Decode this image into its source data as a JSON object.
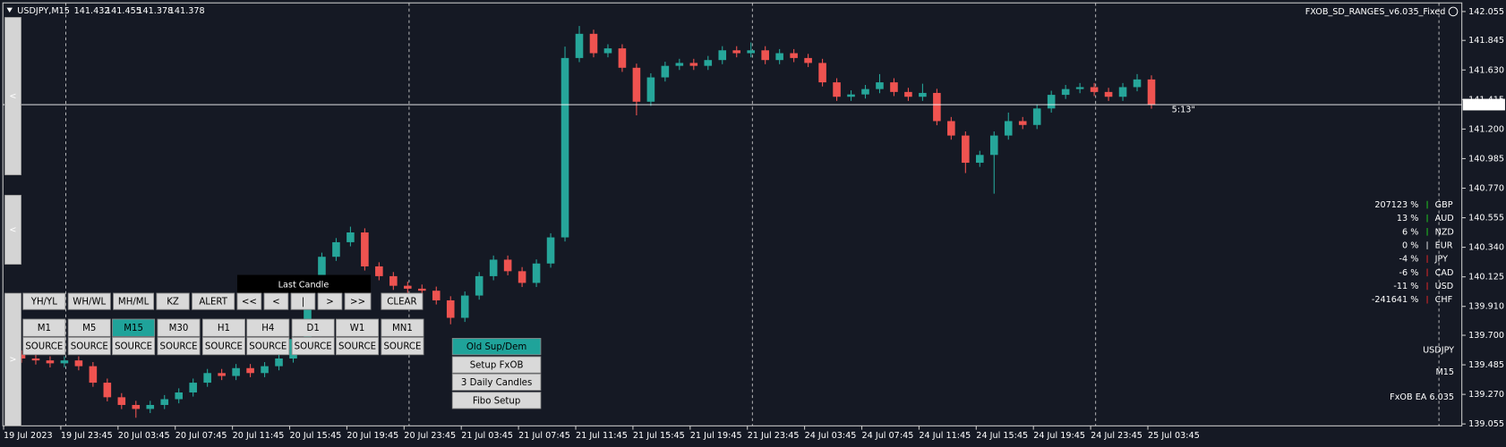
{
  "chart_data": {
    "type": "candlestick",
    "symbol": "USDJPY,M15",
    "header_prices": [
      141.432,
      141.455,
      141.378,
      141.378
    ],
    "indicator": "FXOB_SD_RANGES_v6.035_Fixed",
    "timer": "5:13\"",
    "up_color": "#26a69a",
    "down_color": "#ef5350",
    "x": [
      0,
      1,
      2,
      3,
      4,
      5,
      6,
      7,
      8,
      9,
      10,
      11,
      12,
      13,
      14,
      15,
      16,
      17,
      18,
      19,
      20,
      21,
      22,
      23,
      24,
      25,
      26,
      27,
      28,
      29,
      30,
      31,
      32,
      33,
      34,
      35,
      36,
      37,
      38,
      39,
      40,
      41,
      42,
      43,
      44,
      45,
      46,
      47,
      48,
      49,
      50,
      51,
      52,
      53,
      54,
      55,
      56,
      57,
      58,
      59,
      60,
      61,
      62,
      63,
      64,
      65,
      66,
      67,
      68,
      69,
      70,
      71,
      72,
      73,
      74,
      75,
      76,
      77,
      78,
      79
    ],
    "open": [
      139.56,
      139.531,
      139.517,
      139.496,
      139.517,
      139.475,
      139.355,
      139.249,
      139.193,
      139.164,
      139.193,
      139.235,
      139.284,
      139.355,
      139.425,
      139.404,
      139.461,
      139.425,
      139.475,
      139.531,
      139.672,
      139.954,
      140.271,
      140.377,
      140.448,
      140.201,
      140.13,
      140.06,
      140.039,
      140.024,
      139.954,
      139.827,
      139.989,
      140.13,
      140.25,
      140.166,
      140.081,
      140.222,
      140.412,
      141.717,
      141.893,
      141.752,
      141.787,
      141.646,
      141.399,
      141.576,
      141.66,
      141.681,
      141.66,
      141.702,
      141.773,
      141.752,
      141.773,
      141.702,
      141.752,
      141.717,
      141.681,
      141.54,
      141.435,
      141.452,
      141.491,
      141.54,
      141.47,
      141.435,
      141.463,
      141.258,
      141.153,
      140.955,
      141.012,
      141.153,
      141.258,
      141.23,
      141.35,
      141.449,
      141.491,
      141.505,
      141.47,
      141.435,
      141.505,
      141.561
    ],
    "high": [
      139.59,
      139.561,
      139.547,
      139.547,
      139.547,
      139.505,
      139.385,
      139.279,
      139.223,
      139.223,
      139.265,
      139.314,
      139.385,
      139.455,
      139.455,
      139.491,
      139.491,
      139.505,
      139.561,
      139.702,
      139.984,
      140.301,
      140.407,
      140.49,
      140.478,
      140.231,
      140.16,
      140.09,
      140.069,
      140.054,
      139.984,
      140.019,
      140.16,
      140.28,
      140.28,
      140.196,
      140.252,
      140.442,
      141.8,
      141.95,
      141.923,
      141.817,
      141.817,
      141.676,
      141.606,
      141.69,
      141.711,
      141.711,
      141.732,
      141.803,
      141.803,
      141.83,
      141.803,
      141.782,
      141.782,
      141.747,
      141.711,
      141.57,
      141.482,
      141.521,
      141.6,
      141.57,
      141.5,
      141.53,
      141.493,
      141.288,
      141.183,
      141.042,
      141.183,
      141.32,
      141.288,
      141.38,
      141.479,
      141.521,
      141.535,
      141.535,
      141.5,
      141.535,
      141.6,
      141.591
    ],
    "low": [
      139.5,
      139.487,
      139.466,
      139.466,
      139.445,
      139.325,
      139.219,
      139.163,
      139.1,
      139.134,
      139.163,
      139.205,
      139.254,
      139.325,
      139.374,
      139.374,
      139.395,
      139.395,
      139.445,
      139.501,
      139.642,
      139.924,
      140.241,
      140.347,
      140.171,
      140.1,
      140.03,
      140.009,
      139.994,
      139.924,
      139.78,
      139.797,
      139.959,
      140.1,
      140.136,
      140.051,
      140.051,
      140.192,
      140.382,
      141.687,
      141.722,
      141.722,
      141.616,
      141.3,
      141.369,
      141.546,
      141.63,
      141.63,
      141.63,
      141.672,
      141.722,
      141.722,
      141.672,
      141.672,
      141.687,
      141.651,
      141.51,
      141.405,
      141.405,
      141.422,
      141.461,
      141.44,
      141.405,
      141.405,
      141.228,
      141.123,
      140.88,
      140.925,
      140.73,
      141.123,
      141.2,
      141.2,
      141.32,
      141.419,
      141.461,
      141.44,
      141.405,
      141.405,
      141.475,
      141.348
    ],
    "close": [
      139.531,
      139.517,
      139.496,
      139.517,
      139.475,
      139.355,
      139.249,
      139.193,
      139.164,
      139.193,
      139.235,
      139.284,
      139.355,
      139.425,
      139.404,
      139.461,
      139.425,
      139.475,
      139.531,
      139.672,
      139.954,
      140.271,
      140.377,
      140.448,
      140.201,
      140.13,
      140.06,
      140.039,
      140.024,
      139.954,
      139.827,
      139.989,
      140.13,
      140.25,
      140.166,
      140.081,
      140.222,
      140.412,
      141.717,
      141.893,
      141.752,
      141.787,
      141.646,
      141.399,
      141.576,
      141.66,
      141.681,
      141.66,
      141.702,
      141.773,
      141.752,
      141.773,
      141.702,
      141.752,
      141.717,
      141.681,
      141.54,
      141.435,
      141.452,
      141.491,
      141.54,
      141.47,
      141.435,
      141.463,
      141.258,
      141.153,
      140.955,
      141.012,
      141.153,
      141.258,
      141.23,
      141.35,
      141.449,
      141.491,
      141.505,
      141.47,
      141.435,
      141.505,
      141.561,
      141.378
    ],
    "xlim": [
      -1.3,
      100.7
    ],
    "ylim": [
      139.041,
      142.118
    ],
    "xticks": [
      {
        "value": -1.25,
        "label": "19 Jul 2023"
      },
      {
        "value": 2.75,
        "label": "19 Jul 23:45"
      },
      {
        "value": 6.75,
        "label": "20 Jul 03:45"
      },
      {
        "value": 10.75,
        "label": "20 Jul 07:45"
      },
      {
        "value": 14.75,
        "label": "20 Jul 11:45"
      },
      {
        "value": 18.75,
        "label": "20 Jul 15:45"
      },
      {
        "value": 22.75,
        "label": "20 Jul 19:45"
      },
      {
        "value": 26.75,
        "label": "20 Jul 23:45"
      },
      {
        "value": 30.75,
        "label": "21 Jul 03:45"
      },
      {
        "value": 34.75,
        "label": "21 Jul 07:45"
      },
      {
        "value": 38.75,
        "label": "21 Jul 11:45"
      },
      {
        "value": 42.75,
        "label": "21 Jul 15:45"
      },
      {
        "value": 46.75,
        "label": "21 Jul 19:45"
      },
      {
        "value": 50.75,
        "label": "21 Jul 23:45"
      },
      {
        "value": 54.75,
        "label": "24 Jul 03:45"
      },
      {
        "value": 58.75,
        "label": "24 Jul 07:45"
      },
      {
        "value": 62.75,
        "label": "24 Jul 11:45"
      },
      {
        "value": 66.75,
        "label": "24 Jul 15:45"
      },
      {
        "value": 70.75,
        "label": "24 Jul 19:45"
      },
      {
        "value": 74.75,
        "label": "24 Jul 23:45"
      },
      {
        "value": 78.75,
        "label": "25 Jul 03:45"
      }
    ],
    "yticks": [
      142.055,
      141.845,
      {
        "value": 141.63,
        "label": "141.630"
      },
      141.415,
      {
        "value": 141.2,
        "label": "141.200"
      },
      140.985,
      {
        "value": 140.77,
        "label": "140.770"
      },
      140.555,
      {
        "value": 140.34,
        "label": "140.340"
      },
      140.125,
      {
        "value": 139.91,
        "label": "139.910"
      },
      {
        "value": 139.7,
        "label": "139.700"
      },
      139.485,
      {
        "value": 139.27,
        "label": "139.270"
      },
      139.055
    ],
    "separators": [
      3.1,
      27.1,
      51.1,
      75.1,
      99.1
    ],
    "current_price": 141.378
  },
  "strength": {
    "currencies": [
      "GBP",
      "AUD",
      "NZD",
      "EUR",
      "JPY",
      "CAD",
      "USD",
      "CHF"
    ],
    "values": [
      207123,
      13,
      6,
      0,
      -4,
      -6,
      -11,
      -241641
    ],
    "value_labels": [
      "207123 %",
      "13 %",
      "6 %",
      "0 %",
      "-4 %",
      "-6 %",
      "-11 %",
      "-241641 %"
    ],
    "name_colors": [
      "#ffffff",
      "#ffffff",
      "#ffffff",
      "#ffffff",
      "#00d8e8",
      "#ffffff",
      "#00d8e8",
      "#ffffff"
    ]
  },
  "panel": {
    "last_candle": "Last Candle",
    "row1": [
      "YH/YL",
      "WH/WL",
      "MH/ML",
      "KZ",
      "ALERT",
      "<<",
      "<",
      "|",
      ">",
      ">>",
      "CLEAR"
    ],
    "timeframes": [
      "M1",
      "M5",
      "M15",
      "M30",
      "H1",
      "H4",
      "D1",
      "W1",
      "MN1"
    ],
    "active_timeframe": 2,
    "sources": [
      "SOURCE",
      "SOURCE",
      "SOURCE",
      "SOURCE",
      "SOURCE",
      "SOURCE",
      "SOURCE",
      "SOURCE",
      "SOURCE"
    ],
    "tools": [
      "Old Sup/Dem",
      "Setup FxOB",
      "3 Daily Candles",
      "Fibo Setup"
    ],
    "active_tool": 0
  },
  "side_tabs": [
    "<",
    "<",
    ">"
  ],
  "info": {
    "symbol": "USDJPY",
    "period": "M15",
    "ea": "FxOB EA 6.035"
  }
}
